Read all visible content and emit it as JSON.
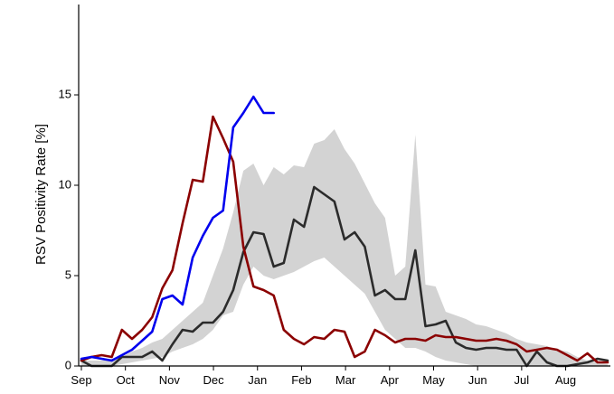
{
  "chart_data": {
    "type": "line",
    "title": "",
    "xlabel": "",
    "ylabel": "RSV Positivity Rate [%]",
    "xlim": [
      0,
      52
    ],
    "ylim": [
      0,
      20
    ],
    "yticks": [
      0,
      5,
      10,
      15
    ],
    "xticks": [
      {
        "week": 0,
        "label": "Sep"
      },
      {
        "week": 4.35,
        "label": "Oct"
      },
      {
        "week": 8.7,
        "label": "Nov"
      },
      {
        "week": 13.05,
        "label": "Dec"
      },
      {
        "week": 17.4,
        "label": "Jan"
      },
      {
        "week": 21.75,
        "label": "Feb"
      },
      {
        "week": 26.1,
        "label": "Mar"
      },
      {
        "week": 30.45,
        "label": "Apr"
      },
      {
        "week": 34.8,
        "label": "May"
      },
      {
        "week": 39.15,
        "label": "Jun"
      },
      {
        "week": 43.5,
        "label": "Jul"
      },
      {
        "week": 47.85,
        "label": "Aug"
      }
    ],
    "grid": false,
    "legend": "none",
    "range_band": {
      "color": "#d3d3d3",
      "x": [
        0,
        1,
        2,
        3,
        4,
        5,
        6,
        7,
        8,
        9,
        10,
        11,
        12,
        13,
        14,
        15,
        16,
        17,
        18,
        19,
        20,
        21,
        22,
        23,
        24,
        25,
        26,
        27,
        28,
        29,
        30,
        31,
        32,
        33,
        34,
        35,
        36,
        37,
        38,
        39,
        40,
        41,
        42,
        43,
        44,
        45,
        46,
        47,
        48,
        49,
        50,
        51,
        52
      ],
      "lower": [
        0,
        0,
        0,
        0,
        0.1,
        0.2,
        0.3,
        0.4,
        0.5,
        0.8,
        1.0,
        1.2,
        1.5,
        2.0,
        2.8,
        3.0,
        4.5,
        5.5,
        5.0,
        4.8,
        5.0,
        5.2,
        5.5,
        5.8,
        6.0,
        5.5,
        5.0,
        4.5,
        4.0,
        3.0,
        2.0,
        1.5,
        1.0,
        1.0,
        0.8,
        0.5,
        0.3,
        0.2,
        0.1,
        0,
        0,
        0,
        0,
        0,
        0,
        0,
        0,
        0,
        0,
        0,
        0,
        0,
        0
      ],
      "upper": [
        0.3,
        0.3,
        0.3,
        0.4,
        0.5,
        0.8,
        1.0,
        1.3,
        1.5,
        2.0,
        2.5,
        3.0,
        3.5,
        5.0,
        6.5,
        8.5,
        10.8,
        11.2,
        10.0,
        11.0,
        10.6,
        11.1,
        11.0,
        12.3,
        12.5,
        13.1,
        12.0,
        11.2,
        10.1,
        9.0,
        8.2,
        5.0,
        5.5,
        12.8,
        4.5,
        4.4,
        3.0,
        2.8,
        2.6,
        2.3,
        2.2,
        2.0,
        1.8,
        1.5,
        1.3,
        1.2,
        1.1,
        0.9,
        0.8,
        0.5,
        0.3,
        0.2,
        0.1
      ]
    },
    "series": [
      {
        "color": "#2b2b2b",
        "x": [
          0,
          1,
          2,
          3,
          4,
          5,
          6,
          7,
          8,
          9,
          10,
          11,
          12,
          13,
          14,
          15,
          16,
          17,
          18,
          19,
          20,
          21,
          22,
          23,
          24,
          25,
          26,
          27,
          28,
          29,
          30,
          31,
          32,
          33,
          34,
          35,
          36,
          37,
          38,
          39,
          40,
          41,
          42,
          43,
          44,
          45,
          46,
          47,
          48,
          49,
          50,
          51,
          52
        ],
        "values": [
          0.3,
          0,
          0,
          0,
          0.5,
          0.5,
          0.5,
          0.8,
          0.3,
          1.2,
          2.0,
          1.9,
          2.4,
          2.4,
          3.0,
          4.2,
          6.3,
          7.4,
          7.3,
          5.5,
          5.7,
          8.1,
          7.7,
          9.9,
          9.5,
          9.1,
          7.0,
          7.4,
          6.6,
          3.9,
          4.2,
          3.7,
          3.7,
          6.4,
          2.2,
          2.3,
          2.5,
          1.3,
          1.0,
          0.9,
          1.0,
          1.0,
          0.9,
          0.9,
          0,
          0.8,
          0.2,
          0,
          0,
          0.1,
          0.2,
          0.4,
          0.3
        ]
      },
      {
        "color": "#8b0000",
        "x": [
          0,
          1,
          2,
          3,
          4,
          5,
          6,
          7,
          8,
          9,
          10,
          11,
          12,
          13,
          14,
          15,
          16,
          17,
          18,
          19,
          20,
          21,
          22,
          23,
          24,
          25,
          26,
          27,
          28,
          29,
          30,
          31,
          32,
          33,
          34,
          35,
          36,
          37,
          38,
          39,
          40,
          41,
          42,
          43,
          44,
          45,
          46,
          47,
          48,
          49,
          50,
          51,
          52
        ],
        "values": [
          0.3,
          0.5,
          0.6,
          0.5,
          2.0,
          1.5,
          2.0,
          2.7,
          4.3,
          5.3,
          7.9,
          10.3,
          10.2,
          13.8,
          12.6,
          11.3,
          6.6,
          4.4,
          4.2,
          3.9,
          2.0,
          1.5,
          1.2,
          1.6,
          1.5,
          2.0,
          1.9,
          0.5,
          0.8,
          2.0,
          1.7,
          1.3,
          1.5,
          1.5,
          1.4,
          1.7,
          1.6,
          1.6,
          1.5,
          1.4,
          1.4,
          1.5,
          1.4,
          1.2,
          0.8,
          0.9,
          1.0,
          0.9,
          0.6,
          0.3,
          0.7,
          0.2,
          0.2
        ]
      },
      {
        "color": "#0000ee",
        "x": [
          0,
          1,
          2,
          3,
          4,
          5,
          6,
          7,
          8,
          9,
          10,
          11,
          12,
          13,
          14,
          15,
          16,
          17,
          18,
          19
        ],
        "values": [
          0.4,
          0.5,
          0.4,
          0.3,
          0.6,
          0.9,
          1.4,
          1.9,
          3.7,
          3.9,
          3.4,
          6.0,
          7.2,
          8.2,
          8.6,
          13.2,
          14.0,
          14.9,
          14.0,
          14.0
        ]
      }
    ]
  }
}
